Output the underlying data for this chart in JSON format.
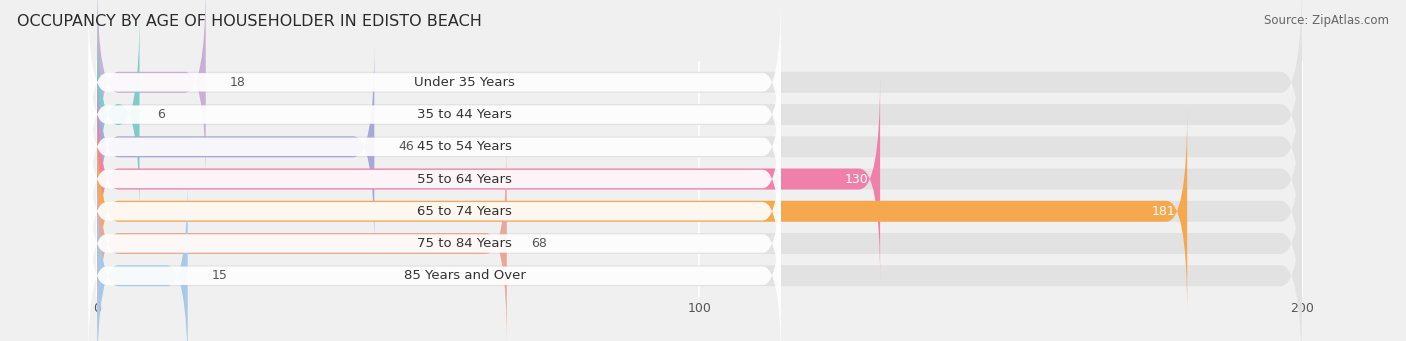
{
  "title": "OCCUPANCY BY AGE OF HOUSEHOLDER IN EDISTO BEACH",
  "source": "Source: ZipAtlas.com",
  "categories": [
    "Under 35 Years",
    "35 to 44 Years",
    "45 to 54 Years",
    "55 to 64 Years",
    "65 to 74 Years",
    "75 to 84 Years",
    "85 Years and Over"
  ],
  "values": [
    18,
    6,
    46,
    130,
    181,
    68,
    15
  ],
  "bar_colors": [
    "#c9afd4",
    "#7ecbca",
    "#a8a8d8",
    "#f07faa",
    "#f5a84e",
    "#e8a898",
    "#a8c8e8"
  ],
  "xlim": [
    -15,
    215
  ],
  "data_max": 200,
  "xticks": [
    0,
    100,
    200
  ],
  "bar_height": 0.65,
  "background_color": "#f0f0f0",
  "bar_bg_color": "#e2e2e2",
  "title_fontsize": 11.5,
  "label_fontsize": 9.5,
  "value_fontsize": 9
}
